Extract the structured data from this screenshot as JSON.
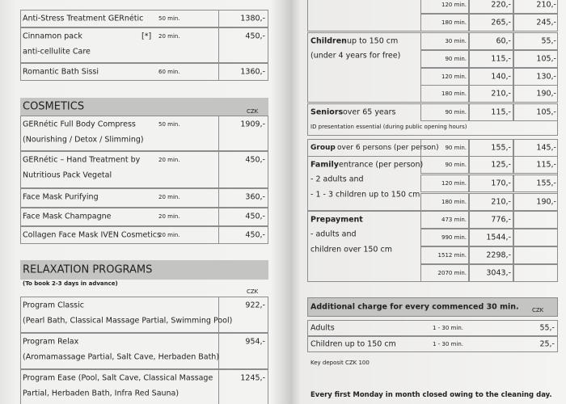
{
  "left": {
    "rows": [
      {
        "name": [
          "Anti-Stress Treatment GERnétic"
        ],
        "duration": "50 min.",
        "price": "1380,-"
      },
      {
        "name": [
          "Cinnamon pack",
          "anti-cellulite Care"
        ],
        "note": "[*]",
        "duration": "20 min.",
        "price": "450,-"
      },
      {
        "name": [
          "Romantic Bath Sissi"
        ],
        "duration": "60 min.",
        "price": "1360,-"
      }
    ],
    "cosmetics": {
      "title": "COSMETICS",
      "currency": "CZK",
      "rows": [
        {
          "name": [
            "GERnétic Full Body Compress",
            "(Nourishing / Detox / Slimming)"
          ],
          "duration": "50 min.",
          "price": "1909,-"
        },
        {
          "name": [
            "GERnétic – Hand Treatment by",
            "Nutritious Pack Vegetal"
          ],
          "duration": "20 min.",
          "price": "450,-"
        },
        {
          "name": [
            "Face Mask Purifying"
          ],
          "duration": "20 min.",
          "price": "360,-"
        },
        {
          "name": [
            "Face Mask Champagne"
          ],
          "duration": "20 min.",
          "price": "450,-"
        },
        {
          "name": [
            "Collagen Face Mask IVEN Cosmetics"
          ],
          "duration": "20 min.",
          "price": "450,-"
        }
      ]
    },
    "relaxation": {
      "title": "RELAXATION PROGRAMS",
      "subtitle": "(To book 2-3 days in advance)",
      "currency": "CZK",
      "rows": [
        {
          "name": [
            "Program Classic",
            "(Pearl Bath, Classical Massage Partial, Swimming Pool)"
          ],
          "price": "922,-"
        },
        {
          "name": [
            "Program Relax",
            "(Aromamassage Partial, Salt Cave, Herbaden Bath)"
          ],
          "price": "954,-"
        },
        {
          "name": [
            "Program Ease  (Pool, Salt Cave, Classical Massage",
            "Partial, Herbaden Bath, Infra Red Sauna)"
          ],
          "price": "1245,-"
        }
      ]
    }
  },
  "right": {
    "groups": [
      {
        "entries": [
          {
            "duration": "120 min.",
            "price": "220,-",
            "price2": "210,-"
          },
          {
            "duration": "180 min.",
            "price": "265,-",
            "price2": "245,-"
          }
        ]
      },
      {
        "bold": "Children",
        "rest": " up to 150 cm",
        "note": [
          "(under 4 years for free)"
        ],
        "entries": [
          {
            "duration": "30 min.",
            "price": "60,-",
            "price2": "55,-"
          },
          {
            "duration": "90 min.",
            "price": "115,-",
            "price2": "105,-"
          },
          {
            "duration": "120 min.",
            "price": "140,-",
            "price2": "130,-"
          },
          {
            "duration": "180 min.",
            "price": "210,-",
            "price2": "190,-"
          }
        ]
      },
      {
        "bold": "Seniors",
        "rest": " over 65 years",
        "note": [
          "ID presentation essential (during public opening hours)"
        ],
        "entries": [
          {
            "duration": "90 min.",
            "price": "115,-",
            "price2": "105,-"
          }
        ]
      },
      {
        "bold": "Group",
        "rest": " over 6 persons (per person)",
        "entries": [
          {
            "duration": "90 min.",
            "price": "155,-",
            "price2": "145,-"
          }
        ]
      },
      {
        "bold": "Family",
        "rest": " entrance (per person)",
        "note": [
          "- 2 adults and",
          "- 1 - 3 children up to 150 cm"
        ],
        "entries": [
          {
            "duration": "90 min.",
            "price": "125,-",
            "price2": "115,-"
          },
          {
            "duration": "120 min.",
            "price": "170,-",
            "price2": "155,-"
          },
          {
            "duration": "180 min.",
            "price": "210,-",
            "price2": "190,-"
          }
        ]
      },
      {
        "bold": "Prepayment",
        "rest": "",
        "note": [
          "- adults and",
          "children over 150 cm"
        ],
        "entries": [
          {
            "duration": "473 min.",
            "price": "776,-"
          },
          {
            "duration": "990 min.",
            "price": "1544,-"
          },
          {
            "duration": "1512 min.",
            "price": "2298,-"
          },
          {
            "duration": "2070 min.",
            "price": "3043,-"
          }
        ]
      }
    ],
    "additional": {
      "title": "Additional charge for every commenced 30 min.",
      "currency": "CZK",
      "rows": [
        {
          "name": "Adults",
          "duration": "1 - 30 min.",
          "price": "55,-"
        },
        {
          "name": "Children up to 150 cm",
          "duration": "1 - 30 min.",
          "price": "25,-"
        }
      ]
    },
    "key_deposit": "Key deposit CZK 100",
    "closing_note": "Every first Monday in month closed owing to the cleaning day."
  }
}
